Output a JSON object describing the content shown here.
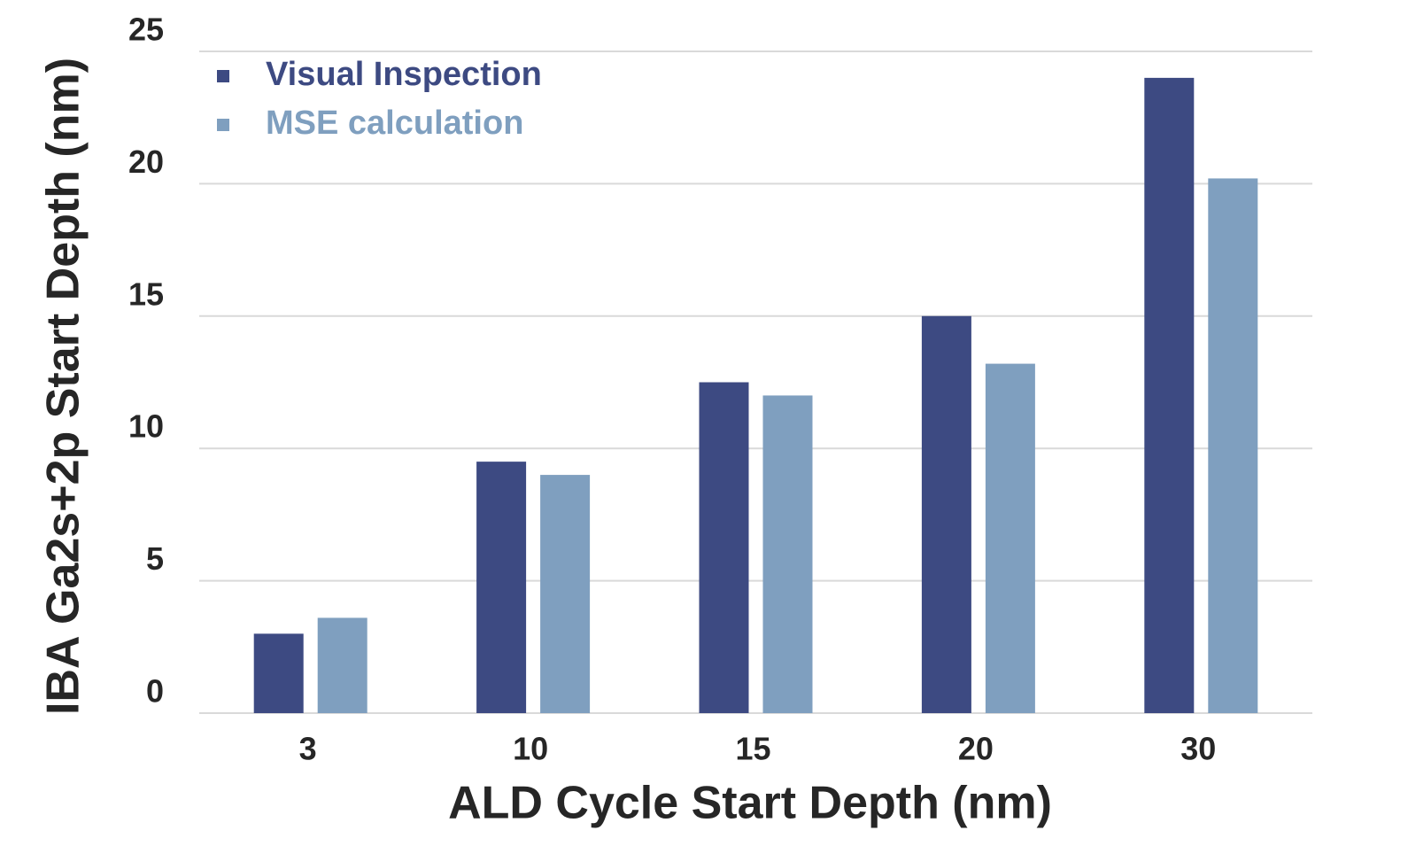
{
  "chart_data": {
    "type": "bar",
    "x_label": "ALD Cycle Start Depth (nm)",
    "y_label": "IBA Ga2s+2p Start Depth (nm)",
    "categories": [
      "3",
      "10",
      "15",
      "20",
      "30"
    ],
    "series": [
      {
        "name": "Visual Inspection",
        "color": "#3d4a82",
        "values": [
          3,
          9.5,
          12.5,
          15,
          24
        ]
      },
      {
        "name": "MSE calculation",
        "color": "#7f9fbf",
        "values": [
          3.6,
          9,
          12,
          13.2,
          20.2
        ]
      }
    ],
    "ylim": [
      0,
      25
    ],
    "yticks": [
      0,
      5,
      10,
      15,
      20,
      25
    ],
    "grid": true,
    "legend": "upper left"
  }
}
